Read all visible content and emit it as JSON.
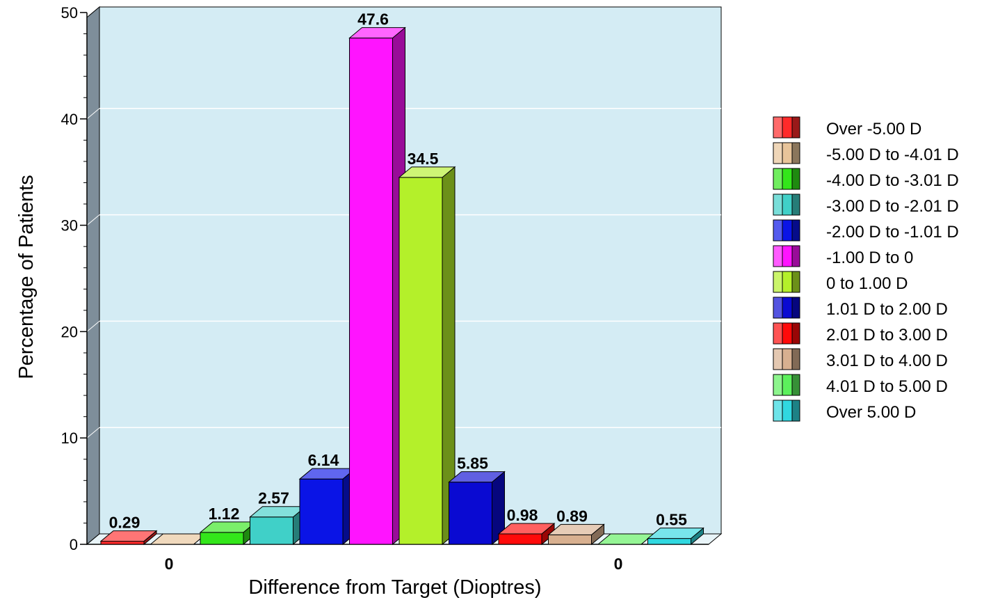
{
  "chart_data": {
    "type": "bar",
    "xlabel": "Difference from Target (Dioptres)",
    "ylabel": "Percentage of Patients",
    "ylim": [
      0,
      50
    ],
    "yticks": [
      "0",
      "10",
      "20",
      "30",
      "40",
      "50"
    ],
    "grid": true,
    "legend_position": "right",
    "series": [
      {
        "name": "Over -5.00 D",
        "value": 0.29,
        "label": "0.29",
        "color": "#ff2a2a"
      },
      {
        "name": "-5.00 D to -4.01 D",
        "value": 0,
        "label": "",
        "color": "#e8c49a"
      },
      {
        "name": "-4.00 D to -3.01 D",
        "value": 1.12,
        "label": "1.12",
        "color": "#33e61a"
      },
      {
        "name": "-3.00 D to -2.01 D",
        "value": 2.57,
        "label": "2.57",
        "color": "#40d0c8"
      },
      {
        "name": "-2.00 D to -1.01 D",
        "value": 6.14,
        "label": "6.14",
        "color": "#0a14e6"
      },
      {
        "name": "-1.00 D to 0",
        "value": 47.6,
        "label": "47.6",
        "color": "#ff14ff"
      },
      {
        "name": "0 to 1.00 D",
        "value": 34.5,
        "label": "34.5",
        "color": "#b4f02a"
      },
      {
        "name": "1.01 D to 2.00 D",
        "value": 5.85,
        "label": "5.85",
        "color": "#0a0ad2"
      },
      {
        "name": "2.01 D to 3.00 D",
        "value": 0.98,
        "label": "0.98",
        "color": "#ff0a0a"
      },
      {
        "name": "3.01 D to 4.00 D",
        "value": 0.89,
        "label": "0.89",
        "color": "#d8b090"
      },
      {
        "name": "4.01 D to 5.00 D",
        "value": 0,
        "label": "",
        "color": "#5cf05c"
      },
      {
        "name": "Over 5.00 D",
        "value": 0.55,
        "label": "0.55",
        "color": "#30d8e0"
      }
    ],
    "zero_labels": [
      "0",
      "0"
    ],
    "plot_background": "#d4ecf4",
    "wall_color": "#7e8e9a"
  }
}
